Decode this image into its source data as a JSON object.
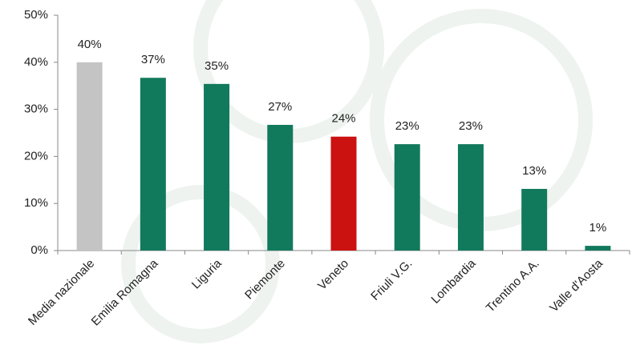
{
  "chart_data": {
    "type": "bar",
    "categories": [
      "Media nazionale",
      "Emilia Romagna",
      "Liguria",
      "Piemonte",
      "Veneto",
      "Friuli V.G.",
      "Lombardia",
      "Trentino A.A.",
      "Valle d'Aosta"
    ],
    "values": [
      40,
      36.7,
      35.4,
      26.7,
      24.2,
      22.6,
      22.6,
      13.1,
      1.0
    ],
    "value_labels": [
      "40%",
      "37%",
      "35%",
      "27%",
      "24%",
      "23%",
      "23%",
      "13%",
      "1%"
    ],
    "colors": [
      "#c4c4c4",
      "#127a5c",
      "#127a5c",
      "#127a5c",
      "#cc1111",
      "#127a5c",
      "#127a5c",
      "#127a5c",
      "#127a5c"
    ],
    "ylim": [
      0,
      50
    ],
    "yticks": [
      {
        "value": 0,
        "label": "0%"
      },
      {
        "value": 10,
        "label": "10%"
      },
      {
        "value": 20,
        "label": "20%"
      },
      {
        "value": 30,
        "label": "30%"
      },
      {
        "value": 40,
        "label": "40%"
      },
      {
        "value": 50,
        "label": "50%"
      }
    ],
    "grid": false
  }
}
